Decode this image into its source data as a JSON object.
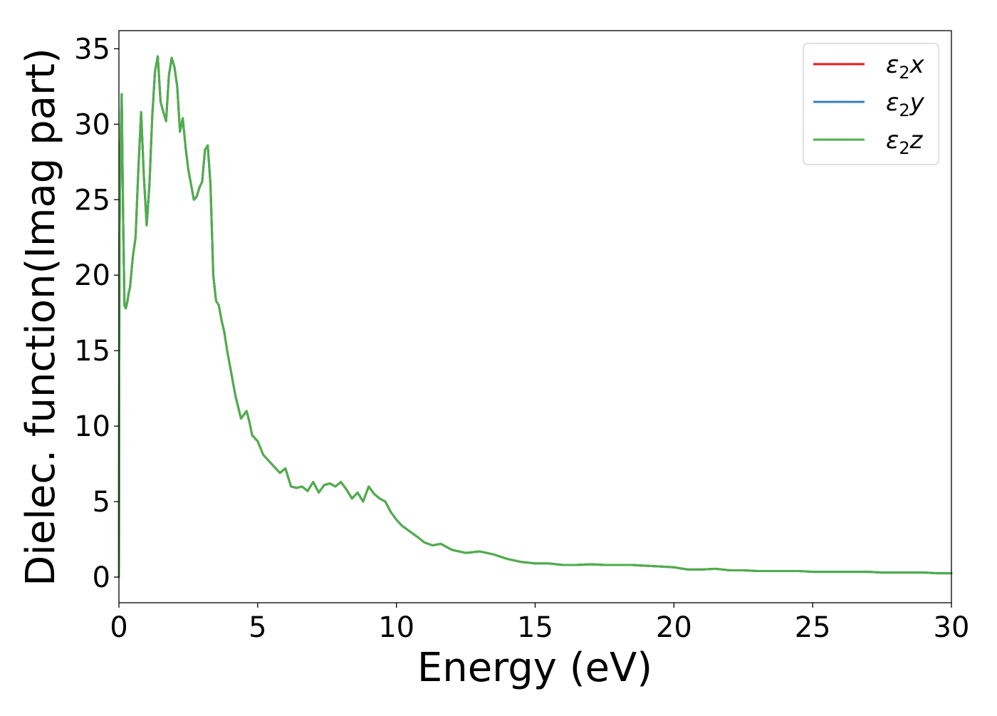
{
  "chart_data": {
    "type": "line",
    "xlabel": "Energy (eV)",
    "ylabel": "Dielec. function(Imag part)",
    "xlim": [
      0,
      30
    ],
    "ylim": [
      -1.7,
      36.2
    ],
    "xticks": [
      0,
      5,
      10,
      15,
      20,
      25,
      30
    ],
    "yticks": [
      0,
      5,
      10,
      15,
      20,
      25,
      30,
      35
    ],
    "grid": false,
    "legend_position": "top-right",
    "x": [
      0,
      0.02,
      0.05,
      0.1,
      0.15,
      0.2,
      0.25,
      0.3,
      0.35,
      0.4,
      0.5,
      0.6,
      0.7,
      0.8,
      0.9,
      1.0,
      1.1,
      1.2,
      1.3,
      1.4,
      1.45,
      1.5,
      1.6,
      1.7,
      1.8,
      1.9,
      2.0,
      2.1,
      2.2,
      2.3,
      2.4,
      2.5,
      2.6,
      2.7,
      2.8,
      2.9,
      3.0,
      3.1,
      3.2,
      3.3,
      3.4,
      3.5,
      3.6,
      3.7,
      3.8,
      3.9,
      4.0,
      4.2,
      4.4,
      4.6,
      4.7,
      4.8,
      4.9,
      5.0,
      5.2,
      5.4,
      5.6,
      5.8,
      6.0,
      6.2,
      6.4,
      6.6,
      6.8,
      7.0,
      7.2,
      7.4,
      7.6,
      7.8,
      8.0,
      8.2,
      8.4,
      8.6,
      8.8,
      9.0,
      9.2,
      9.4,
      9.6,
      9.8,
      10.0,
      10.2,
      10.5,
      10.8,
      11.0,
      11.3,
      11.6,
      12.0,
      12.5,
      13.0,
      13.5,
      14.0,
      14.5,
      15.0,
      15.5,
      16.0,
      16.5,
      17.0,
      17.5,
      18.0,
      18.5,
      19.0,
      19.5,
      20.0,
      20.5,
      21.0,
      21.5,
      22.0,
      22.5,
      23.0,
      23.5,
      24.0,
      24.5,
      25.0,
      25.5,
      26.0,
      26.5,
      27.0,
      27.5,
      28.0,
      28.5,
      29.0,
      29.5,
      30.0
    ],
    "series": [
      {
        "name": "ε2x",
        "color": "#e41a1c",
        "values": [
          0,
          22,
          28,
          32,
          24,
          18,
          17.8,
          18.2,
          18.8,
          19.2,
          21.2,
          22.5,
          27,
          30.8,
          26.5,
          23.3,
          26,
          30.5,
          33.5,
          34.5,
          33,
          31.5,
          30.8,
          30.2,
          33.2,
          34.4,
          33.8,
          32.5,
          29.5,
          30.4,
          28.5,
          27,
          26,
          25,
          25.2,
          25.8,
          26.2,
          28.3,
          28.6,
          26,
          20,
          18.3,
          18,
          17,
          16.2,
          15,
          14,
          12,
          10.5,
          11.0,
          10.3,
          9.4,
          9.2,
          9.0,
          8.1,
          7.7,
          7.3,
          6.9,
          7.2,
          6.0,
          5.9,
          6.0,
          5.7,
          6.3,
          5.6,
          6.1,
          6.2,
          6.0,
          6.3,
          5.8,
          5.2,
          5.6,
          5.0,
          6.0,
          5.5,
          5.2,
          5.0,
          4.3,
          3.8,
          3.4,
          3.0,
          2.6,
          2.3,
          2.1,
          2.2,
          1.8,
          1.6,
          1.7,
          1.5,
          1.2,
          1.0,
          0.9,
          0.9,
          0.8,
          0.8,
          0.85,
          0.8,
          0.8,
          0.8,
          0.75,
          0.7,
          0.65,
          0.5,
          0.5,
          0.55,
          0.45,
          0.45,
          0.4,
          0.4,
          0.4,
          0.4,
          0.35,
          0.35,
          0.35,
          0.35,
          0.35,
          0.3,
          0.3,
          0.3,
          0.3,
          0.25,
          0.25
        ]
      },
      {
        "name": "ε2y",
        "color": "#377eb8",
        "values": [
          0,
          22,
          28,
          32,
          24,
          18,
          17.8,
          18.2,
          18.8,
          19.2,
          21.2,
          22.5,
          27,
          30.8,
          26.5,
          23.3,
          26,
          30.5,
          33.5,
          34.5,
          33,
          31.5,
          30.8,
          30.2,
          33.2,
          34.4,
          33.8,
          32.5,
          29.5,
          30.4,
          28.5,
          27,
          26,
          25,
          25.2,
          25.8,
          26.2,
          28.3,
          28.6,
          26,
          20,
          18.3,
          18,
          17,
          16.2,
          15,
          14,
          12,
          10.5,
          11.0,
          10.3,
          9.4,
          9.2,
          9.0,
          8.1,
          7.7,
          7.3,
          6.9,
          7.2,
          6.0,
          5.9,
          6.0,
          5.7,
          6.3,
          5.6,
          6.1,
          6.2,
          6.0,
          6.3,
          5.8,
          5.2,
          5.6,
          5.0,
          6.0,
          5.5,
          5.2,
          5.0,
          4.3,
          3.8,
          3.4,
          3.0,
          2.6,
          2.3,
          2.1,
          2.2,
          1.8,
          1.6,
          1.7,
          1.5,
          1.2,
          1.0,
          0.9,
          0.9,
          0.8,
          0.8,
          0.85,
          0.8,
          0.8,
          0.8,
          0.75,
          0.7,
          0.65,
          0.5,
          0.5,
          0.55,
          0.45,
          0.45,
          0.4,
          0.4,
          0.4,
          0.4,
          0.35,
          0.35,
          0.35,
          0.35,
          0.35,
          0.3,
          0.3,
          0.3,
          0.3,
          0.25,
          0.25
        ]
      },
      {
        "name": "ε2z",
        "color": "#4daf4a",
        "values": [
          0,
          22,
          28,
          32,
          24,
          18,
          17.8,
          18.2,
          18.8,
          19.2,
          21.2,
          22.5,
          27,
          30.8,
          26.5,
          23.3,
          26,
          30.5,
          33.5,
          34.5,
          33,
          31.5,
          30.8,
          30.2,
          33.2,
          34.4,
          33.8,
          32.5,
          29.5,
          30.4,
          28.5,
          27,
          26,
          25,
          25.2,
          25.8,
          26.2,
          28.3,
          28.6,
          26,
          20,
          18.3,
          18,
          17,
          16.2,
          15,
          14,
          12,
          10.5,
          11.0,
          10.3,
          9.4,
          9.2,
          9.0,
          8.1,
          7.7,
          7.3,
          6.9,
          7.2,
          6.0,
          5.9,
          6.0,
          5.7,
          6.3,
          5.6,
          6.1,
          6.2,
          6.0,
          6.3,
          5.8,
          5.2,
          5.6,
          5.0,
          6.0,
          5.5,
          5.2,
          5.0,
          4.3,
          3.8,
          3.4,
          3.0,
          2.6,
          2.3,
          2.1,
          2.2,
          1.8,
          1.6,
          1.7,
          1.5,
          1.2,
          1.0,
          0.9,
          0.9,
          0.8,
          0.8,
          0.85,
          0.8,
          0.8,
          0.8,
          0.75,
          0.7,
          0.65,
          0.5,
          0.5,
          0.55,
          0.45,
          0.45,
          0.4,
          0.4,
          0.4,
          0.4,
          0.35,
          0.35,
          0.35,
          0.35,
          0.35,
          0.3,
          0.3,
          0.3,
          0.3,
          0.25,
          0.25
        ]
      }
    ],
    "legend": [
      {
        "symbol": "ε",
        "sub": "2",
        "var": "x"
      },
      {
        "symbol": "ε",
        "sub": "2",
        "var": "y"
      },
      {
        "symbol": "ε",
        "sub": "2",
        "var": "z"
      }
    ]
  }
}
